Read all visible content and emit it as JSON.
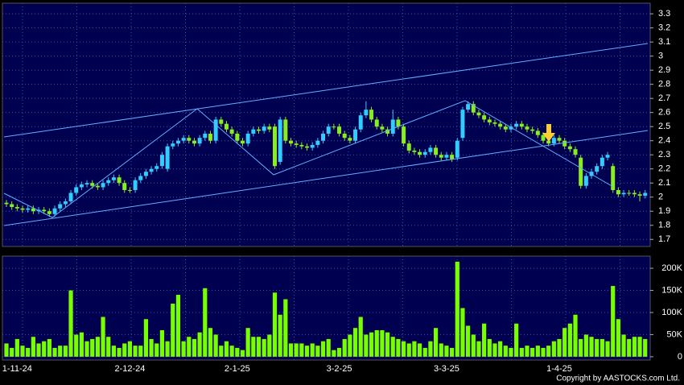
{
  "chart_data": {
    "type": "candlestick",
    "categories": [
      null,
      null,
      "1-11-24",
      null,
      null,
      null,
      null,
      null,
      null,
      null,
      null,
      null,
      null,
      null,
      null,
      null,
      null,
      null,
      null,
      null,
      null,
      null,
      null,
      "2-12-24",
      null,
      null,
      null,
      null,
      null,
      null,
      null,
      null,
      null,
      null,
      null,
      null,
      null,
      null,
      null,
      null,
      null,
      null,
      null,
      "2-1-25",
      null,
      null,
      null,
      null,
      null,
      null,
      null,
      null,
      null,
      null,
      null,
      null,
      null,
      null,
      null,
      null,
      null,
      null,
      "3-2-25",
      null,
      null,
      null,
      null,
      null,
      null,
      null,
      null,
      null,
      null,
      null,
      null,
      null,
      null,
      null,
      null,
      null,
      null,
      null,
      "3-3-25",
      null,
      null,
      null,
      null,
      null,
      null,
      null,
      null,
      null,
      null,
      null,
      null,
      null,
      null,
      null,
      null,
      null,
      null,
      null,
      null,
      "1-4-25",
      null,
      null,
      null,
      null,
      null,
      null,
      null,
      null,
      null,
      null,
      null,
      null,
      null,
      null,
      null,
      null
    ],
    "open": [
      1.96,
      1.95,
      1.93,
      1.92,
      1.91,
      1.92,
      1.9,
      1.91,
      1.9,
      1.88,
      1.92,
      1.95,
      1.97,
      2.03,
      2.07,
      2.09,
      2.1,
      2.08,
      2.07,
      2.1,
      2.12,
      2.14,
      2.1,
      2.05,
      2.05,
      2.12,
      2.15,
      2.18,
      2.2,
      2.22,
      2.2,
      2.36,
      2.38,
      2.4,
      2.42,
      2.4,
      2.38,
      2.42,
      2.45,
      2.4,
      2.55,
      2.52,
      2.48,
      2.45,
      2.4,
      2.38,
      2.45,
      2.48,
      2.47,
      2.5,
      2.5,
      2.25,
      2.55,
      2.4,
      2.38,
      2.37,
      2.36,
      2.35,
      2.37,
      2.4,
      2.45,
      2.5,
      2.5,
      2.45,
      2.42,
      2.4,
      2.48,
      2.58,
      2.62,
      2.55,
      2.5,
      2.48,
      2.45,
      2.55,
      2.5,
      2.38,
      2.33,
      2.32,
      2.3,
      2.32,
      2.35,
      2.3,
      2.28,
      2.3,
      2.28,
      2.42,
      2.62,
      2.66,
      2.6,
      2.58,
      2.55,
      2.53,
      2.52,
      2.5,
      2.48,
      2.5,
      2.52,
      2.5,
      2.48,
      2.47,
      2.44,
      2.4,
      2.38,
      2.42,
      2.4,
      2.36,
      2.34,
      2.28,
      2.08,
      2.15,
      2.18,
      2.22,
      2.28,
      2.22,
      2.05,
      2.02,
      2.03,
      2.03,
      2.02,
      2.01
    ],
    "high": [
      1.98,
      1.97,
      1.95,
      1.94,
      1.94,
      1.94,
      1.93,
      1.93,
      1.92,
      1.94,
      1.97,
      1.99,
      2.05,
      2.09,
      2.11,
      2.12,
      2.12,
      2.1,
      2.12,
      2.14,
      2.16,
      2.16,
      2.12,
      2.07,
      2.14,
      2.17,
      2.2,
      2.22,
      2.24,
      2.32,
      2.38,
      2.4,
      2.42,
      2.44,
      2.44,
      2.42,
      2.44,
      2.47,
      2.47,
      2.57,
      2.57,
      2.54,
      2.5,
      2.47,
      2.42,
      2.47,
      2.5,
      2.5,
      2.52,
      2.52,
      2.52,
      2.57,
      2.57,
      2.42,
      2.4,
      2.39,
      2.38,
      2.39,
      2.42,
      2.47,
      2.52,
      2.52,
      2.52,
      2.47,
      2.44,
      2.5,
      2.6,
      2.68,
      2.64,
      2.57,
      2.52,
      2.5,
      2.62,
      2.57,
      2.52,
      2.4,
      2.35,
      2.34,
      2.34,
      2.37,
      2.37,
      2.32,
      2.32,
      2.32,
      2.42,
      2.64,
      2.68,
      2.68,
      2.62,
      2.6,
      2.57,
      2.55,
      2.54,
      2.52,
      2.52,
      2.54,
      2.54,
      2.52,
      2.5,
      2.49,
      2.46,
      2.42,
      2.44,
      2.44,
      2.42,
      2.38,
      2.36,
      2.3,
      2.17,
      2.2,
      2.24,
      2.3,
      2.32,
      2.24,
      2.07,
      2.05,
      2.05,
      2.05,
      2.04,
      2.05
    ],
    "low": [
      1.93,
      1.91,
      1.9,
      1.89,
      1.89,
      1.88,
      1.88,
      1.88,
      1.86,
      1.86,
      1.9,
      1.93,
      1.95,
      2.01,
      2.05,
      2.07,
      2.06,
      2.05,
      2.05,
      2.08,
      2.1,
      2.08,
      2.03,
      2.03,
      2.03,
      2.1,
      2.13,
      2.16,
      2.18,
      2.2,
      2.18,
      2.34,
      2.36,
      2.38,
      2.38,
      2.36,
      2.36,
      2.4,
      2.38,
      2.38,
      2.5,
      2.46,
      2.43,
      2.38,
      2.36,
      2.36,
      2.43,
      2.45,
      2.45,
      2.46,
      2.2,
      2.23,
      2.38,
      2.36,
      2.35,
      2.34,
      2.33,
      2.33,
      2.35,
      2.38,
      2.43,
      2.48,
      2.43,
      2.4,
      2.38,
      2.38,
      2.46,
      2.56,
      2.53,
      2.48,
      2.46,
      2.43,
      2.43,
      2.48,
      2.36,
      2.31,
      2.3,
      2.28,
      2.28,
      2.3,
      2.28,
      2.26,
      2.26,
      2.25,
      2.26,
      2.4,
      2.6,
      2.58,
      2.56,
      2.53,
      2.51,
      2.5,
      2.48,
      2.46,
      2.46,
      2.48,
      2.48,
      2.46,
      2.45,
      2.42,
      2.38,
      2.36,
      2.36,
      2.38,
      2.34,
      2.32,
      2.28,
      2.06,
      2.06,
      2.13,
      2.16,
      2.2,
      2.26,
      2.03,
      2.0,
      2.0,
      2.01,
      2.0,
      1.97,
      1.99
    ],
    "close": [
      1.95,
      1.93,
      1.92,
      1.91,
      1.92,
      1.9,
      1.91,
      1.9,
      1.88,
      1.92,
      1.95,
      1.97,
      2.03,
      2.07,
      2.09,
      2.1,
      2.08,
      2.07,
      2.1,
      2.12,
      2.14,
      2.1,
      2.05,
      2.05,
      2.12,
      2.15,
      2.18,
      2.2,
      2.22,
      2.3,
      2.36,
      2.38,
      2.4,
      2.42,
      2.4,
      2.38,
      2.42,
      2.45,
      2.4,
      2.55,
      2.52,
      2.48,
      2.45,
      2.4,
      2.38,
      2.45,
      2.48,
      2.47,
      2.5,
      2.48,
      2.22,
      2.55,
      2.4,
      2.38,
      2.37,
      2.36,
      2.35,
      2.37,
      2.4,
      2.45,
      2.5,
      2.5,
      2.45,
      2.42,
      2.4,
      2.48,
      2.58,
      2.62,
      2.55,
      2.5,
      2.48,
      2.45,
      2.55,
      2.5,
      2.38,
      2.33,
      2.32,
      2.3,
      2.32,
      2.35,
      2.3,
      2.28,
      2.3,
      2.27,
      2.4,
      2.62,
      2.66,
      2.6,
      2.58,
      2.55,
      2.53,
      2.52,
      2.5,
      2.48,
      2.5,
      2.52,
      2.5,
      2.48,
      2.47,
      2.44,
      2.4,
      2.38,
      2.42,
      2.4,
      2.36,
      2.34,
      2.3,
      2.08,
      2.15,
      2.18,
      2.22,
      2.28,
      2.3,
      2.05,
      2.02,
      2.03,
      2.03,
      2.02,
      2.01,
      2.03
    ],
    "volume": [
      30000,
      20000,
      40000,
      25000,
      20000,
      45000,
      30000,
      35000,
      40000,
      20000,
      25000,
      25000,
      150000,
      50000,
      55000,
      35000,
      40000,
      45000,
      90000,
      45000,
      25000,
      20000,
      30000,
      35000,
      25000,
      25000,
      85000,
      40000,
      30000,
      60000,
      35000,
      120000,
      140000,
      35000,
      45000,
      40000,
      55000,
      155000,
      65000,
      50000,
      25000,
      35000,
      25000,
      20000,
      15000,
      65000,
      45000,
      45000,
      40000,
      50000,
      145000,
      95000,
      130000,
      30000,
      30000,
      30000,
      25000,
      30000,
      25000,
      35000,
      40000,
      15000,
      20000,
      40000,
      50000,
      65000,
      90000,
      50000,
      55000,
      60000,
      60000,
      55000,
      45000,
      40000,
      35000,
      30000,
      35000,
      30000,
      20000,
      35000,
      65000,
      30000,
      25000,
      20000,
      215000,
      110000,
      70000,
      50000,
      35000,
      75000,
      40000,
      30000,
      35000,
      25000,
      20000,
      75000,
      20000,
      25000,
      20000,
      25000,
      20000,
      25000,
      35000,
      40000,
      65000,
      75000,
      95000,
      40000,
      50000,
      45000,
      40000,
      40000,
      35000,
      160000,
      85000,
      50000,
      40000,
      45000,
      45000,
      40000
    ],
    "up_color": "#33ccff",
    "down_color": "#88ee22",
    "volume_color": "#77ff00",
    "ylim": [
      1.65,
      3.375
    ],
    "yticks": [
      1.7,
      1.8,
      1.9,
      2,
      2.1,
      2.2,
      2.3,
      2.4,
      2.5,
      2.6,
      2.7,
      2.8,
      2.9,
      3,
      3.1,
      3.2,
      3.3
    ],
    "volume_ylim": [
      -7500,
      227500
    ],
    "volume_yticks": [
      0,
      {
        "value": 50000,
        "label": "50K"
      },
      {
        "value": 100000,
        "label": "100K"
      },
      {
        "value": 150000,
        "label": "150K"
      },
      {
        "value": 200000,
        "label": "200K"
      }
    ],
    "grid": true
  },
  "copyright": "Copyright by AASTOCKS.com Ltd."
}
